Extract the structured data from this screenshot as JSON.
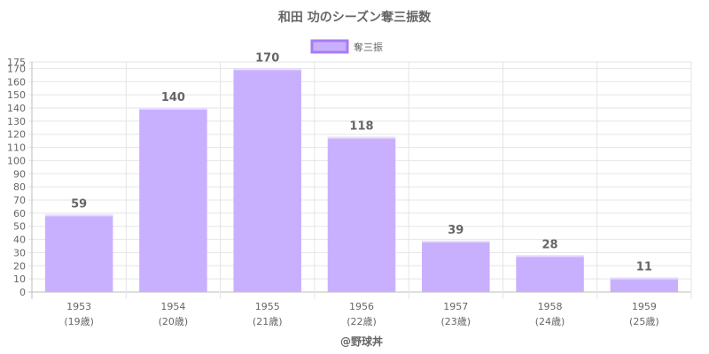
{
  "chart_data": {
    "type": "bar",
    "title": "和田 功のシーズン奪三振数",
    "categories": [
      "1953",
      "1954",
      "1955",
      "1956",
      "1957",
      "1958",
      "1959"
    ],
    "category_sublabels": [
      "(19歳)",
      "(20歳)",
      "(21歳)",
      "(22歳)",
      "(23歳)",
      "(24歳)",
      "(25歳)"
    ],
    "series": [
      {
        "name": "奪三振",
        "values": [
          59,
          140,
          170,
          118,
          39,
          28,
          11
        ]
      }
    ],
    "ylim": [
      0,
      175
    ],
    "ytick_step": 10,
    "grid": true,
    "legend_position": "top",
    "colors": {
      "bar_fill": "#c9b0ff",
      "bar_stroke": "#a77cf5",
      "grid": "#e5e5e5",
      "text": "#666666"
    }
  },
  "credit": "@野球丼"
}
